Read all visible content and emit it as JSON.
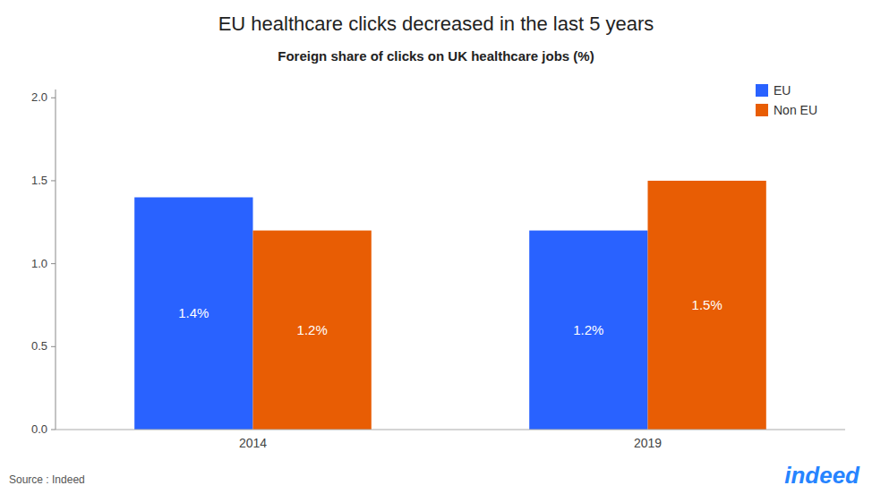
{
  "chart_data": {
    "type": "bar",
    "title": "EU healthcare clicks decreased in the last 5 years",
    "subtitle": "Foreign share of clicks on UK healthcare jobs (%)",
    "categories": [
      "2014",
      "2019"
    ],
    "series": [
      {
        "name": "EU",
        "color": "#2962FF",
        "values": [
          1.4,
          1.2
        ],
        "value_labels": [
          "1.4%",
          "1.2%"
        ]
      },
      {
        "name": "Non EU",
        "color": "#E85D04",
        "values": [
          1.2,
          1.5
        ],
        "value_labels": [
          "1.2%",
          "1.5%"
        ]
      }
    ],
    "ylim": [
      0,
      2.05
    ],
    "yticks": [
      {
        "value": 0,
        "label": "0.0"
      },
      0.5,
      {
        "value": 1,
        "label": "1.0"
      },
      1.5,
      {
        "value": 2,
        "label": "2.0"
      }
    ],
    "grid": false,
    "legend": "upper right",
    "data_labels": true,
    "annotations": [
      {
        "text": "Source : Indeed"
      },
      {
        "text": "indeed",
        "color": "#2684FF"
      }
    ]
  }
}
